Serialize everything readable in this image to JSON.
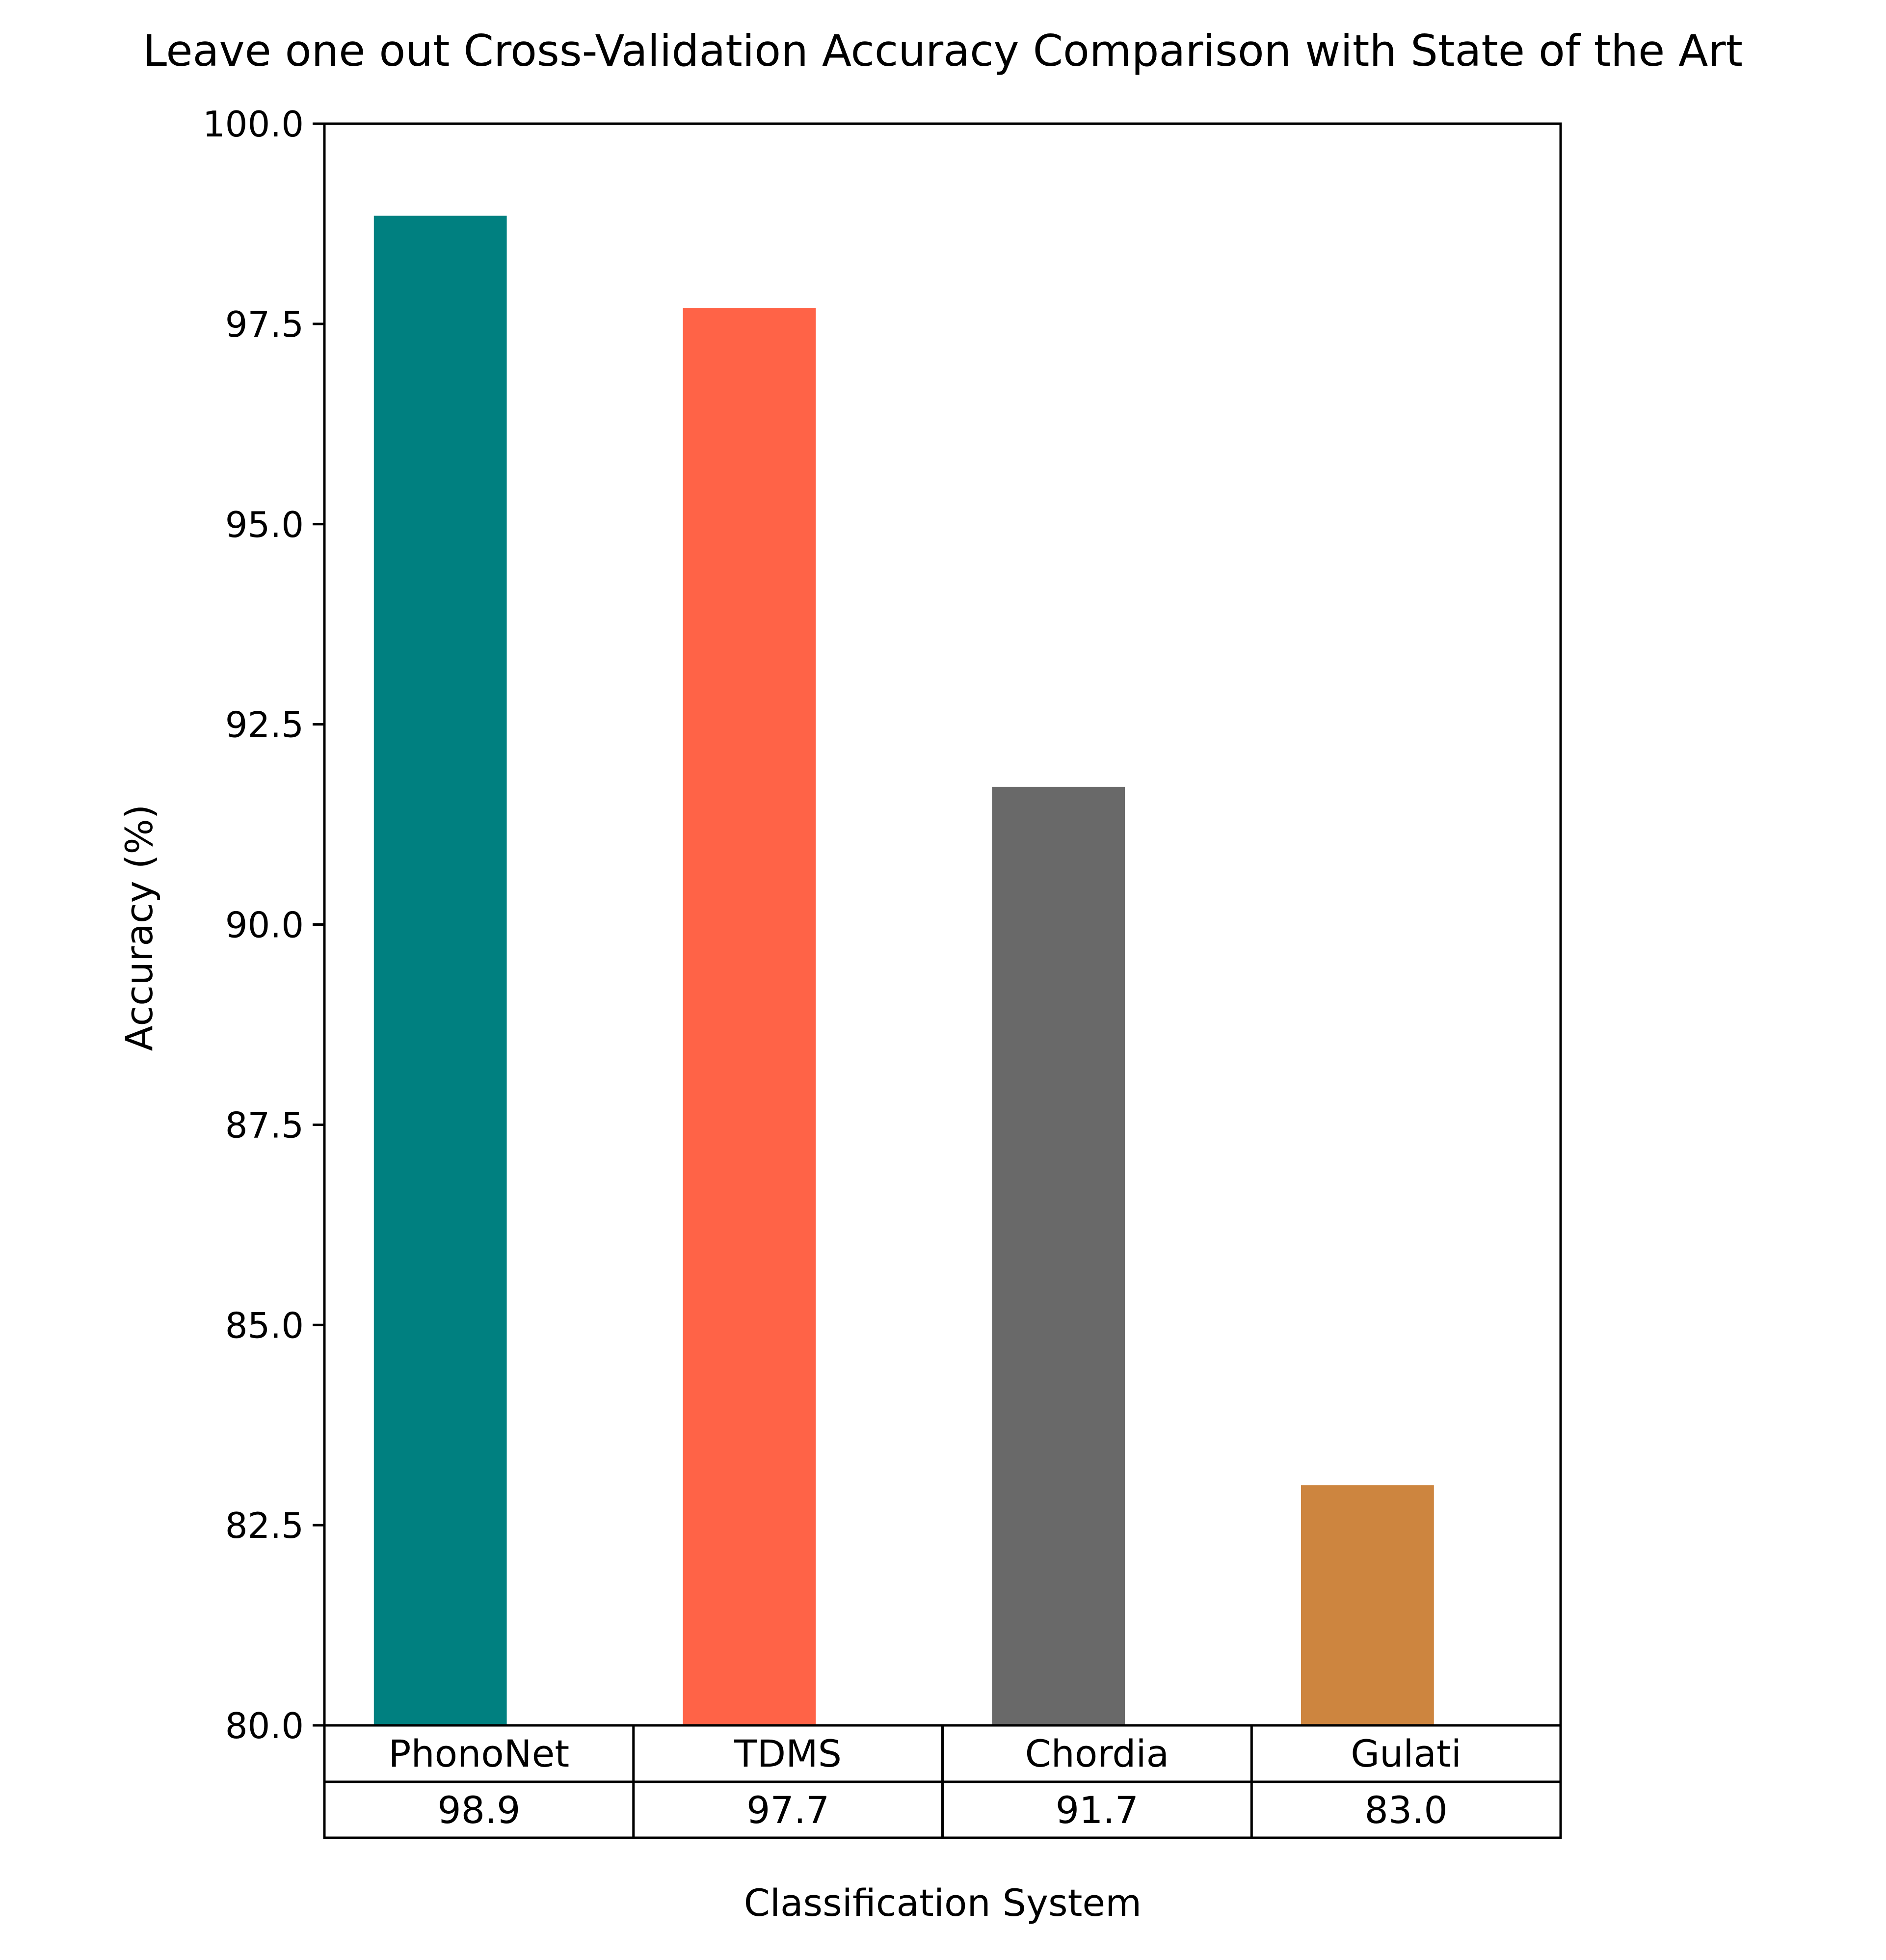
{
  "chart_data": {
    "type": "bar",
    "title": "Leave one out Cross-Validation Accuracy Comparison with State of the Art",
    "xlabel": "Classification System",
    "ylabel": "Accuracy (%)",
    "categories": [
      "PhonoNet",
      "TDMS",
      "Chordia",
      "Gulati"
    ],
    "values": [
      98.85,
      97.7,
      91.72,
      83.0
    ],
    "colors": [
      "#008080",
      "#ff6347",
      "#696969",
      "#cd853f"
    ],
    "table_values": [
      "98.9",
      "97.7",
      "91.7",
      "83.0"
    ],
    "ylim": [
      80.0,
      100.0
    ],
    "yticks": [
      80.0,
      82.5,
      85.0,
      87.5,
      90.0,
      92.5,
      95.0,
      97.5,
      100.0
    ],
    "ytick_labels": [
      "80.0",
      "82.5",
      "85.0",
      "87.5",
      "90.0",
      "92.5",
      "95.0",
      "97.5",
      "100.0"
    ],
    "grid": false,
    "legend": "none"
  }
}
